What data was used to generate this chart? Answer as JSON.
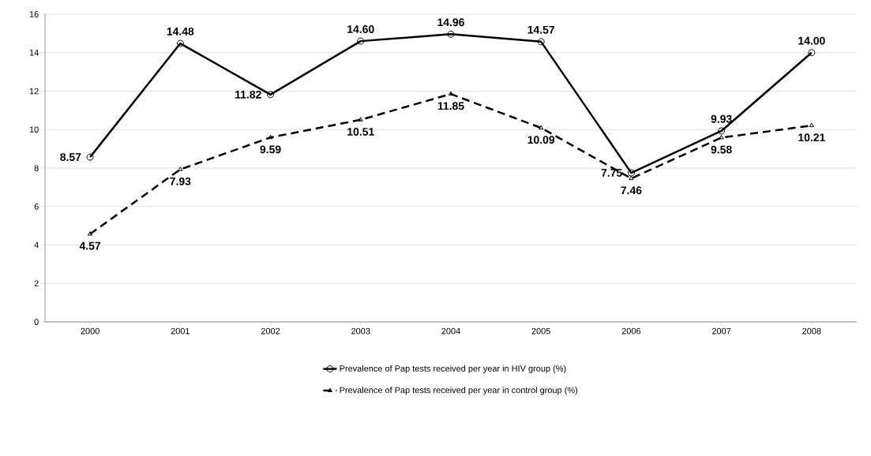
{
  "chart_data": {
    "type": "line",
    "categories": [
      "2000",
      "2001",
      "2002",
      "2003",
      "2004",
      "2005",
      "2006",
      "2007",
      "2008"
    ],
    "series": [
      {
        "name": "Prevalence of Pap tests received per year in HIV group (%)",
        "color": "#000000",
        "marker": "circle",
        "line_style": "solid",
        "values": [
          8.57,
          14.48,
          11.82,
          14.6,
          14.96,
          14.57,
          7.75,
          9.93,
          14.0
        ],
        "value_labels": [
          "8.57",
          "14.48",
          "11.82",
          "14.60",
          "14.96",
          "14.57",
          "7.75",
          "9.93",
          "14.00"
        ]
      },
      {
        "name": "Prevalence of Pap tests received per year in control group (%)",
        "color": "#000000",
        "marker": "triangle",
        "line_style": "dashed",
        "values": [
          4.57,
          7.93,
          9.59,
          10.51,
          11.85,
          10.09,
          7.46,
          9.58,
          10.21
        ],
        "value_labels": [
          "4.57",
          "7.93",
          "9.59",
          "10.51",
          "11.85",
          "10.09",
          "7.46",
          "9.58",
          "10.21"
        ]
      }
    ],
    "ylim": [
      0,
      16
    ],
    "yticks": [
      0,
      2,
      4,
      6,
      8,
      10,
      12,
      14,
      16
    ],
    "grid": "y",
    "legend": "bottom"
  }
}
